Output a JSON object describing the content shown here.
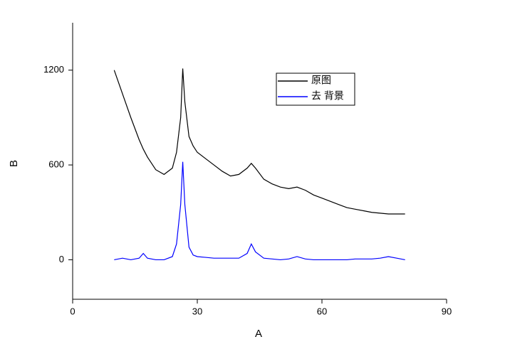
{
  "chart_data": {
    "type": "line",
    "x_label": "A",
    "y_label": "B",
    "x": [
      10,
      12,
      14,
      16,
      17,
      18,
      20,
      22,
      24,
      25,
      26,
      26.5,
      27,
      28,
      29,
      30,
      32,
      34,
      36,
      38,
      40,
      42,
      43,
      44,
      46,
      48,
      50,
      52,
      54,
      56,
      58,
      60,
      62,
      64,
      66,
      68,
      70,
      72,
      74,
      76,
      78,
      80
    ],
    "series": [
      {
        "name": "原图",
        "color": "#000000",
        "values": [
          1200,
          1050,
          900,
          760,
          700,
          650,
          570,
          540,
          580,
          680,
          900,
          1210,
          1000,
          780,
          720,
          680,
          640,
          600,
          560,
          530,
          540,
          580,
          610,
          580,
          510,
          480,
          460,
          450,
          460,
          440,
          410,
          390,
          370,
          350,
          330,
          320,
          310,
          300,
          295,
          290,
          290,
          290
        ]
      },
      {
        "name": "去 背景",
        "color": "#0000ff",
        "values": [
          0,
          10,
          0,
          10,
          40,
          10,
          0,
          0,
          20,
          100,
          350,
          620,
          350,
          80,
          30,
          20,
          15,
          10,
          10,
          10,
          10,
          40,
          100,
          50,
          10,
          5,
          0,
          5,
          20,
          5,
          0,
          0,
          0,
          0,
          0,
          5,
          5,
          5,
          10,
          20,
          10,
          0
        ]
      }
    ],
    "xlim": [
      0,
      90
    ],
    "xticks": [
      0,
      30,
      60,
      90
    ],
    "ylim": [
      -250,
      1500
    ],
    "yticks": [
      0,
      600,
      1200
    ],
    "grid": false,
    "legend": "top-right"
  }
}
